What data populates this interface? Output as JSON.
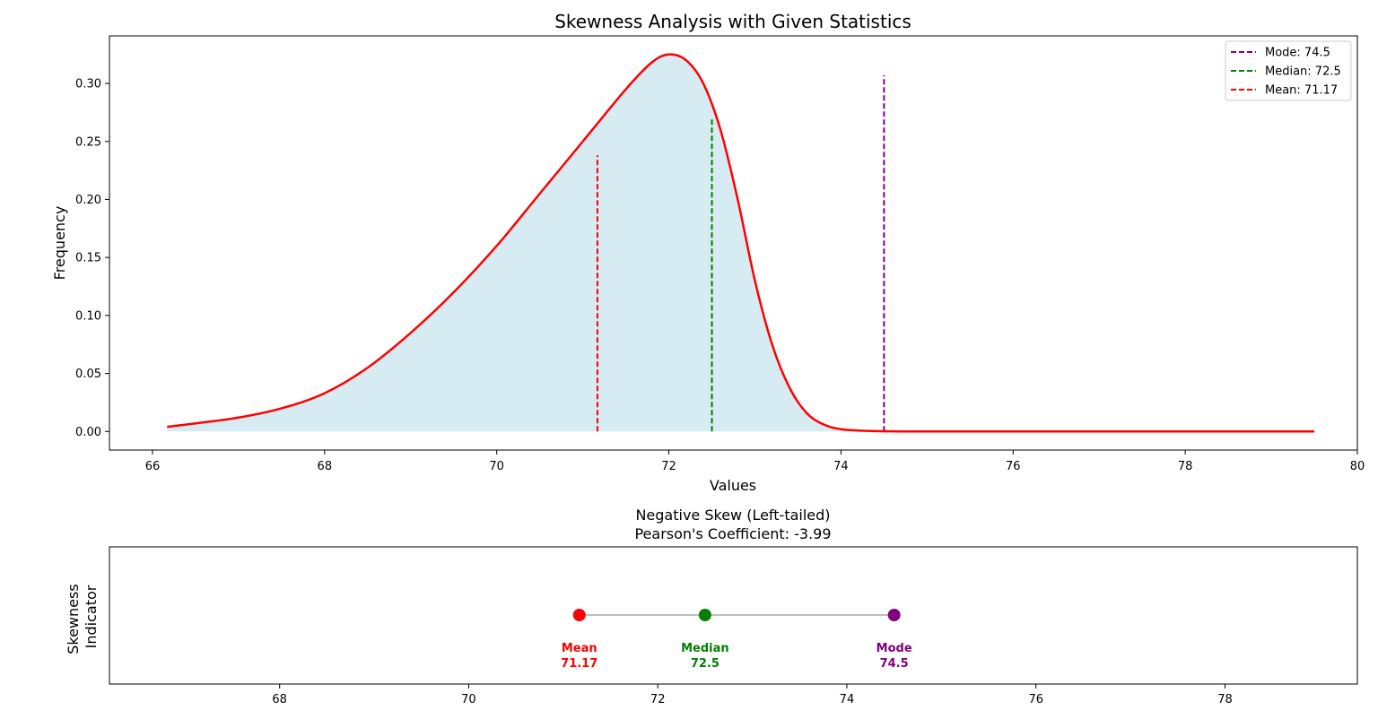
{
  "chart_data": [
    {
      "type": "area",
      "title": "Skewness Analysis with Given Statistics",
      "xlabel": "Values",
      "ylabel": "Frequency",
      "xlim": [
        65.5,
        80.0
      ],
      "ylim": [
        -0.016,
        0.341
      ],
      "xticks": [
        "66",
        "68",
        "70",
        "72",
        "74",
        "76",
        "78",
        "80"
      ],
      "yticks": [
        "0.00",
        "0.05",
        "0.10",
        "0.15",
        "0.20",
        "0.25",
        "0.30"
      ],
      "grid": false,
      "legend_position": "top-right",
      "curve": {
        "color": "#ff0000",
        "fill": "#add8e6",
        "x": [
          66.17,
          66.5,
          67.0,
          67.5,
          68.0,
          68.5,
          69.0,
          69.5,
          70.0,
          70.5,
          71.0,
          71.5,
          71.8,
          72.0,
          72.2,
          72.4,
          72.6,
          72.8,
          73.0,
          73.2,
          73.4,
          73.6,
          73.8,
          74.0,
          74.3,
          74.6,
          75.0,
          76.0,
          77.0,
          78.0,
          79.5
        ],
        "y": [
          0.004,
          0.007,
          0.012,
          0.02,
          0.033,
          0.055,
          0.085,
          0.12,
          0.16,
          0.205,
          0.25,
          0.295,
          0.318,
          0.325,
          0.32,
          0.3,
          0.26,
          0.2,
          0.13,
          0.075,
          0.038,
          0.016,
          0.006,
          0.002,
          0.0005,
          0.0001,
          0.0,
          0.0,
          0.0,
          0.0,
          0.0
        ]
      },
      "reference_lines": [
        {
          "name": "Mode: 74.5",
          "x": 74.5,
          "y_top": 0.307,
          "color": "#800080"
        },
        {
          "name": "Median: 72.5",
          "x": 72.5,
          "y_top": 0.27,
          "color": "#008000"
        },
        {
          "name": "Mean: 71.17",
          "x": 71.17,
          "y_top": 0.238,
          "color": "#ff0000"
        }
      ]
    },
    {
      "type": "scatter",
      "title": "Negative Skew (Left-tailed)",
      "subtitle": "Pearson's Coefficient: -3.99",
      "ylabel": "Skewness\nIndicator",
      "ylabel_lines": [
        "Skewness",
        "Indicator"
      ],
      "xlim": [
        66.2,
        79.4
      ],
      "xticks": [
        "68",
        "70",
        "72",
        "74",
        "76",
        "78"
      ],
      "connector_color": "#a9a9a9",
      "points": [
        {
          "name": "Mean",
          "value_label": "71.17",
          "x": 71.17,
          "color": "#ff0000"
        },
        {
          "name": "Median",
          "value_label": "72.5",
          "x": 72.5,
          "color": "#008000"
        },
        {
          "name": "Mode",
          "value_label": "74.5",
          "x": 74.5,
          "color": "#800080"
        }
      ]
    }
  ]
}
